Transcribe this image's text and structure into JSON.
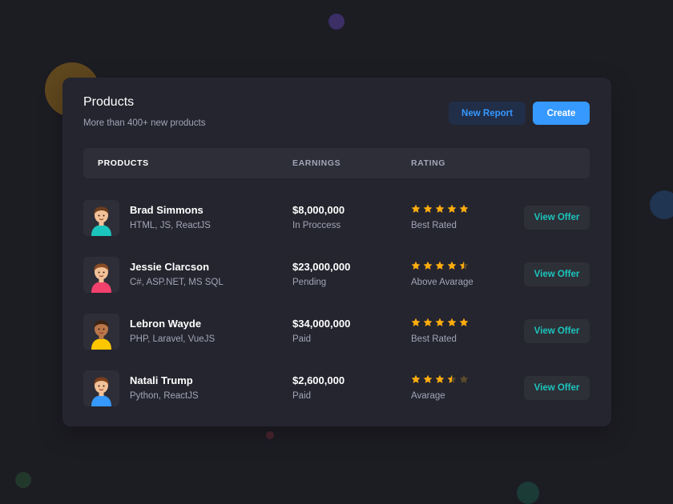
{
  "header": {
    "title": "Products",
    "subtitle": "More than 400+ new products",
    "new_report_label": "New Report",
    "create_label": "Create"
  },
  "table": {
    "columns": [
      "PRODUCTS",
      "EARNINGS",
      "RATING"
    ],
    "rows": [
      {
        "name": "Brad Simmons",
        "skills": "HTML, JS, ReactJS",
        "earnings": "$8,000,000",
        "status": "In Proccess",
        "rating": 5,
        "rating_label": "Best Rated",
        "action": "View Offer",
        "avatar": {
          "skin": "#f2c197",
          "hair": "#6b3d1e",
          "shirt": "#1bc5bd"
        }
      },
      {
        "name": "Jessie Clarcson",
        "skills": "C#, ASP.NET, MS SQL",
        "earnings": "$23,000,000",
        "status": "Pending",
        "rating": 4.5,
        "rating_label": "Above Avarage",
        "action": "View Offer",
        "avatar": {
          "skin": "#f2c197",
          "hair": "#8a4b25",
          "shirt": "#f1416c"
        }
      },
      {
        "name": "Lebron Wayde",
        "skills": "PHP, Laravel, VueJS",
        "earnings": "$34,000,000",
        "status": "Paid",
        "rating": 5,
        "rating_label": "Best Rated",
        "action": "View Offer",
        "avatar": {
          "skin": "#b9774a",
          "hair": "#3b2314",
          "shirt": "#ffc700"
        }
      },
      {
        "name": "Natali Trump",
        "skills": "Python, ReactJS",
        "earnings": "$2,600,000",
        "status": "Paid",
        "rating": 3.5,
        "rating_label": "Avarage",
        "action": "View Offer",
        "avatar": {
          "skin": "#f2c197",
          "hair": "#7a3e1d",
          "shirt": "#3699ff"
        }
      }
    ]
  },
  "colors": {
    "star_filled": "#ffad0f",
    "star_empty": "#5c4a2a",
    "accent": "#3699ff",
    "offer_text": "#1bc5bd"
  }
}
